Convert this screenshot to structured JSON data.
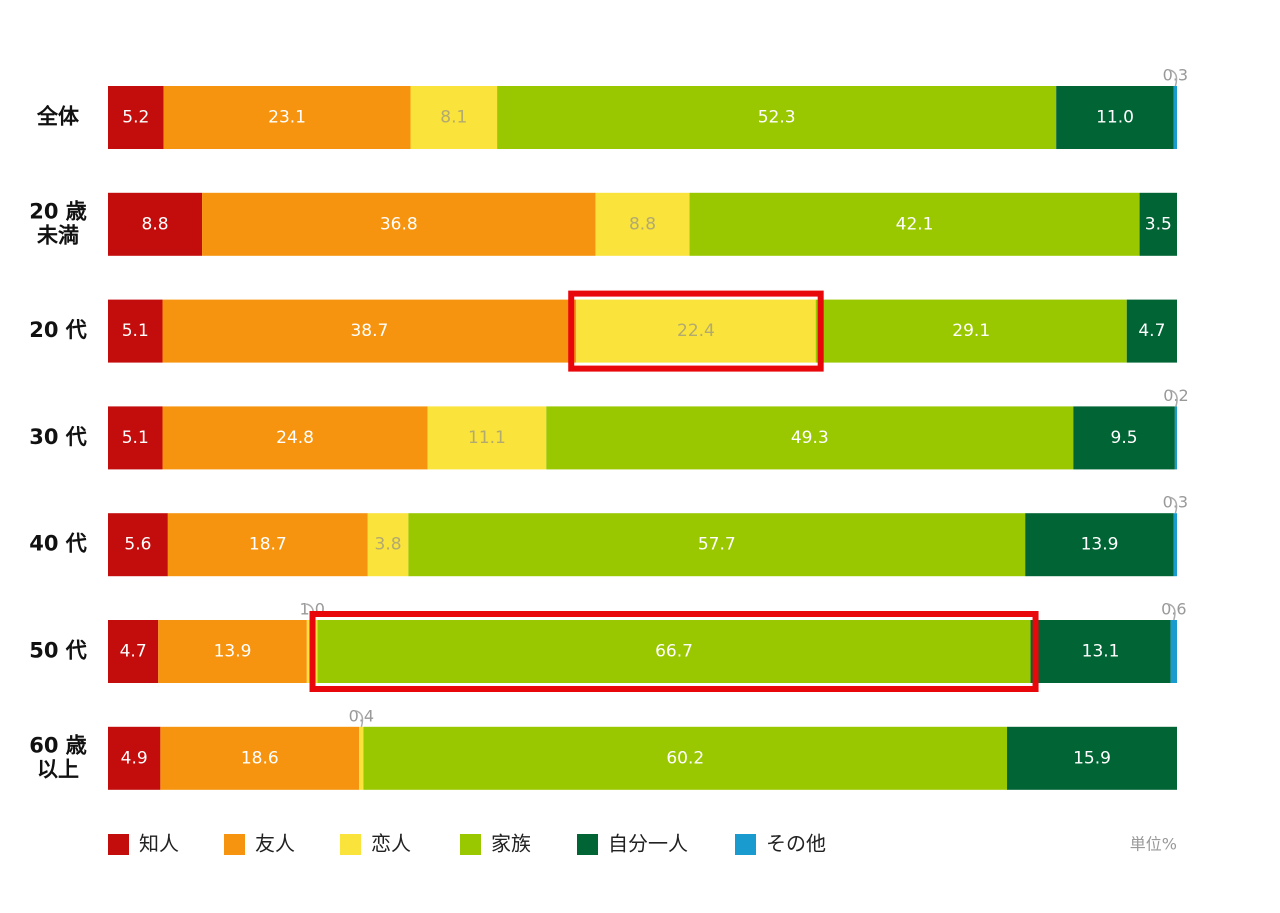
{
  "chart_data": {
    "type": "stacked-bar-horizontal",
    "categories": [
      "全体",
      "20 歳\n未満",
      "20 代",
      "30 代",
      "40 代",
      "50 代",
      "60 歳\n以上"
    ],
    "xlim": [
      0,
      100
    ],
    "unit_label": "単位%",
    "series": [
      {
        "name": "知人",
        "color": "#c30d0d",
        "label_color": "#ffffff",
        "values": [
          5.2,
          8.8,
          5.1,
          5.1,
          5.6,
          4.7,
          4.9
        ],
        "value_labels": [
          "5.2",
          "8.8",
          "5.1",
          "5.1",
          "5.6",
          "4.7",
          "4.9"
        ],
        "highlight": [
          false,
          false,
          false,
          false,
          false,
          false,
          false
        ]
      },
      {
        "name": "友人",
        "color": "#f7940f",
        "label_color": "#ffffff",
        "values": [
          23.1,
          36.8,
          38.7,
          24.8,
          18.7,
          13.9,
          18.6
        ],
        "value_labels": [
          "23.1",
          "36.8",
          "38.7",
          "24.8",
          "18.7",
          "13.9",
          "18.6"
        ],
        "highlight": [
          false,
          false,
          false,
          false,
          false,
          false,
          false
        ]
      },
      {
        "name": "恋人",
        "color": "#fae33b",
        "label_color": "#b3aa70",
        "values": [
          8.1,
          8.8,
          22.4,
          11.1,
          3.8,
          1.0,
          0.4
        ],
        "value_labels": [
          "8.1",
          "8.8",
          "22.4",
          "11.1",
          "3.8",
          "1.0",
          "0.4"
        ],
        "highlight": [
          false,
          false,
          true,
          false,
          false,
          false,
          false
        ]
      },
      {
        "name": "家族",
        "color": "#99c800",
        "label_color": "#ffffff",
        "values": [
          52.3,
          42.1,
          29.1,
          49.3,
          57.7,
          66.7,
          60.2
        ],
        "value_labels": [
          "52.3",
          "42.1",
          "29.1",
          "49.3",
          "57.7",
          "66.7",
          "60.2"
        ],
        "highlight": [
          false,
          false,
          false,
          false,
          false,
          true,
          false
        ]
      },
      {
        "name": "自分一人",
        "color": "#006434",
        "label_color": "#ffffff",
        "values": [
          11.0,
          3.5,
          4.7,
          9.5,
          13.9,
          13.1,
          15.9
        ],
        "value_labels": [
          "11.0",
          "3.5",
          "4.7",
          "9.5",
          "13.9",
          "13.1",
          "15.9"
        ],
        "highlight": [
          false,
          false,
          false,
          false,
          false,
          false,
          false
        ]
      },
      {
        "name": "その他",
        "color": "#1a9bd0",
        "label_color": "#ffffff",
        "values": [
          0.3,
          null,
          null,
          0.2,
          0.3,
          0.6,
          null
        ],
        "value_labels": [
          "0.3",
          null,
          null,
          "0.2",
          "0.3",
          "0.6",
          null
        ],
        "highlight": [
          false,
          false,
          false,
          false,
          false,
          false,
          false
        ]
      }
    ]
  }
}
